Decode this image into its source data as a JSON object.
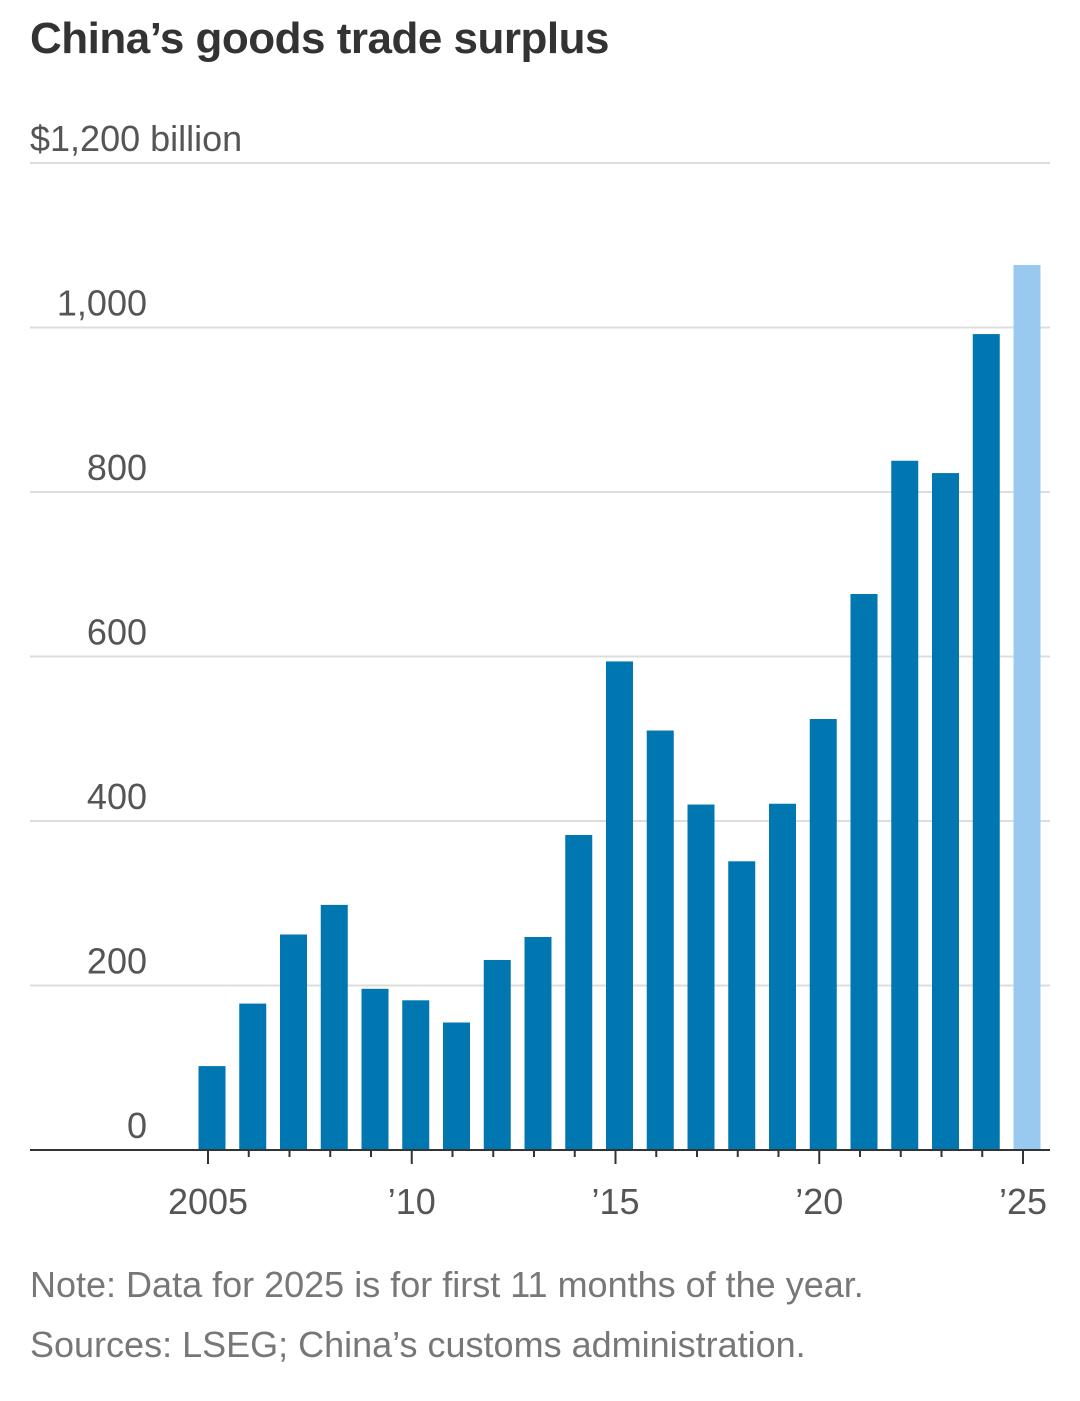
{
  "chart_data": {
    "type": "bar",
    "title": "China’s goods trade surplus",
    "ylabel_unit_tick": "$1,200 billion",
    "ylim": [
      0,
      1200
    ],
    "y_ticks": [
      0,
      200,
      400,
      600,
      800,
      1000,
      1200
    ],
    "y_tick_labels": [
      "0",
      "200",
      "400",
      "600",
      "800",
      "1,000",
      "$1,200 billion"
    ],
    "x_tick_years": [
      2005,
      2010,
      2015,
      2020,
      2025
    ],
    "x_tick_labels": [
      "2005",
      "’10",
      "’15",
      "’20",
      "’25"
    ],
    "categories": [
      2005,
      2006,
      2007,
      2008,
      2009,
      2010,
      2011,
      2012,
      2013,
      2014,
      2015,
      2016,
      2017,
      2018,
      2019,
      2020,
      2021,
      2022,
      2023,
      2024,
      2025
    ],
    "values": [
      102,
      178,
      262,
      298,
      196,
      182,
      155,
      231,
      259,
      383,
      594,
      510,
      420,
      351,
      421,
      524,
      676,
      838,
      823,
      992,
      1076
    ],
    "partial_year": 2025,
    "colors": {
      "bar": "#0077b0",
      "bar_partial": "#99c9ee",
      "grid": "#dddddd",
      "axis": "#333333"
    },
    "grid": true,
    "legend": "none"
  },
  "note": "Note: Data for 2025 is for first 11 months of the year.",
  "source": "Sources: LSEG; China’s customs administration."
}
